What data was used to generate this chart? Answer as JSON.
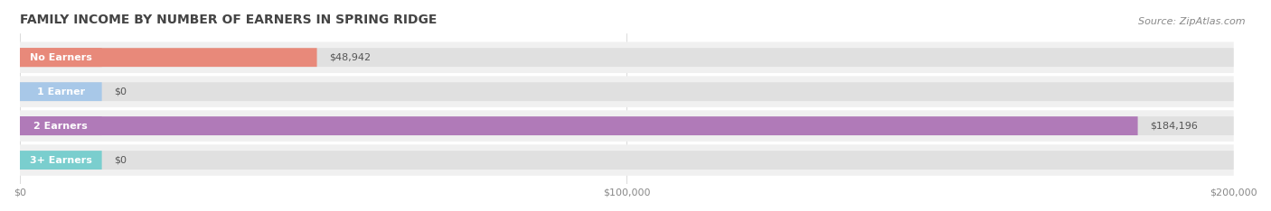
{
  "title": "FAMILY INCOME BY NUMBER OF EARNERS IN SPRING RIDGE",
  "source": "Source: ZipAtlas.com",
  "categories": [
    "No Earners",
    "1 Earner",
    "2 Earners",
    "3+ Earners"
  ],
  "values": [
    48942,
    0,
    184196,
    0
  ],
  "bar_colors": [
    "#e8897a",
    "#a8c8e8",
    "#b07ab8",
    "#7acece"
  ],
  "label_bg_color": [
    "#e8897a",
    "#a8c8e8",
    "#b07ab8",
    "#7acece"
  ],
  "row_bg_color": "#f0f0f0",
  "bar_bg_color": "#e8e8e8",
  "xmax": 200000,
  "xticks": [
    0,
    100000,
    200000
  ],
  "xtick_labels": [
    "$0",
    "$100,000",
    "$200,000"
  ],
  "value_labels": [
    "$48,942",
    "$0",
    "$184,196",
    "$0"
  ],
  "title_fontsize": 10,
  "source_fontsize": 8,
  "label_fontsize": 8,
  "value_fontsize": 8,
  "tick_fontsize": 8
}
